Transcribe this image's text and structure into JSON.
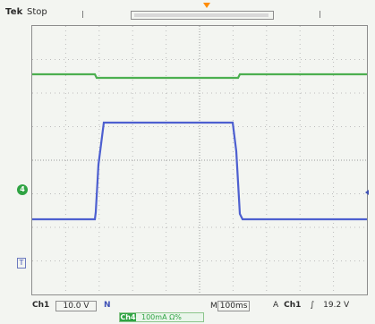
{
  "header": {
    "brand": "Tek",
    "run_state": "Stop"
  },
  "left_markers": {
    "ch2_marker": "4",
    "trigger_marker": "T"
  },
  "footer": {
    "ch1_label": "Ch1",
    "ch1_scale": "10.0 V",
    "ch1_bandwidth_flag": "N",
    "timebase_prefix": "M",
    "timebase_value": "100ms",
    "trigger_source_prefix": "A",
    "trigger_source": "Ch1",
    "trigger_slope": "∫",
    "trigger_level": "19.2 V",
    "ch2_tag": "Ch4",
    "ch2_scale": "100mA Ω%"
  },
  "colors": {
    "background": "#f3f5f1",
    "trace_green": "#4caf50",
    "trace_blue": "#4d5fd0",
    "grid": "#b8b8b8",
    "trigger_marker": "#ff8c00"
  }
}
